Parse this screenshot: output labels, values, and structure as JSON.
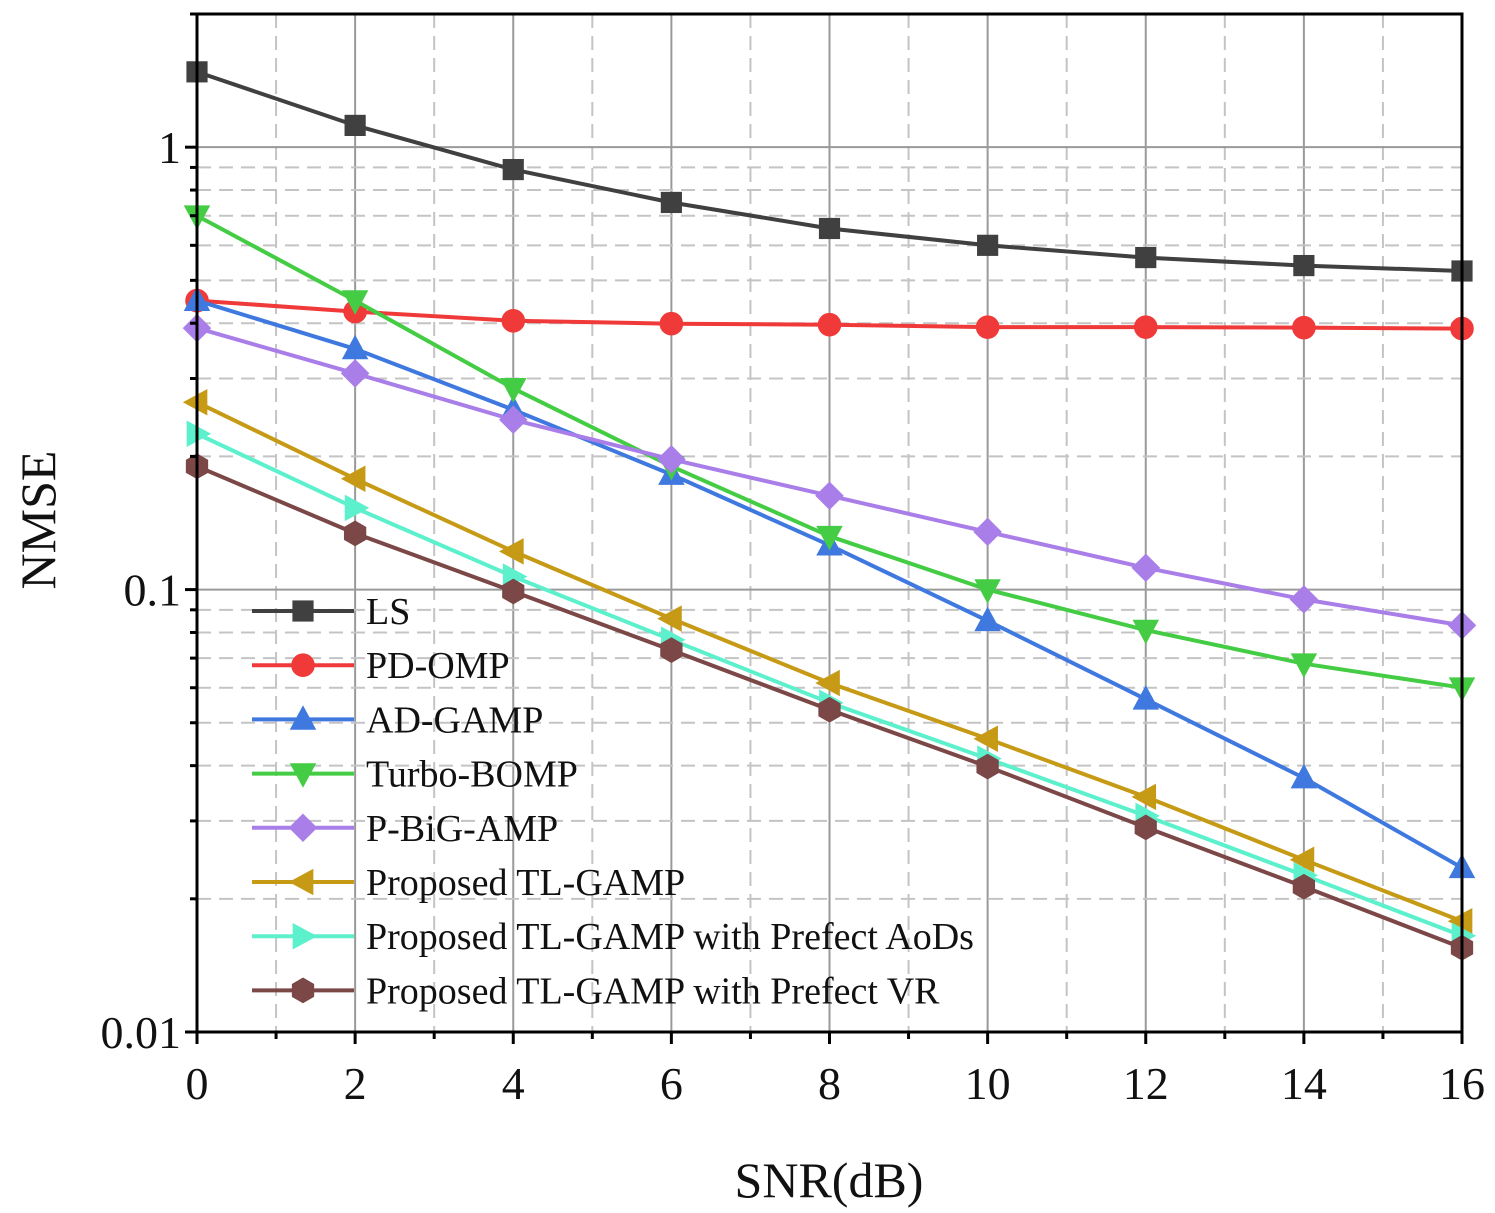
{
  "chart_data": {
    "type": "line",
    "title": "",
    "xlabel": "SNR(dB)",
    "ylabel": "NMSE",
    "yscale": "log",
    "xlim": [
      0,
      16
    ],
    "ylim": [
      0.01,
      2
    ],
    "grid": true,
    "legend_position": "lower-left",
    "x": [
      0,
      2,
      4,
      6,
      8,
      10,
      12,
      14,
      16
    ],
    "x_ticks": [
      {
        "value": 0,
        "label": "0"
      },
      {
        "value": 2,
        "label": "2"
      },
      {
        "value": 4,
        "label": "4"
      },
      {
        "value": 6,
        "label": "6"
      },
      {
        "value": 8,
        "label": "8"
      },
      {
        "value": 10,
        "label": "10"
      },
      {
        "value": 12,
        "label": "12"
      },
      {
        "value": 14,
        "label": "14"
      },
      {
        "value": 16,
        "label": "16"
      }
    ],
    "y_ticks": [
      {
        "value": 1,
        "label": "1"
      },
      {
        "value": 0.1,
        "label": "0.1"
      },
      {
        "value": 0.01,
        "label": "0.01"
      }
    ],
    "series": [
      {
        "name": "LS",
        "color": "#404040",
        "marker": "square",
        "values": [
          1.48,
          1.12,
          0.89,
          0.75,
          0.655,
          0.6,
          0.563,
          0.54,
          0.525
        ]
      },
      {
        "name": "PD-OMP",
        "color": "#f03a3a",
        "marker": "circle",
        "values": [
          0.45,
          0.425,
          0.405,
          0.399,
          0.397,
          0.392,
          0.392,
          0.391,
          0.389
        ]
      },
      {
        "name": "AD-GAMP",
        "color": "#3f79e0",
        "marker": "triangle-up",
        "values": [
          0.45,
          0.35,
          0.255,
          0.182,
          0.126,
          0.085,
          0.0565,
          0.0375,
          0.0235
        ]
      },
      {
        "name": "Turbo-BOMP",
        "color": "#44cc44",
        "marker": "triangle-down",
        "values": [
          0.7,
          0.45,
          0.285,
          0.19,
          0.132,
          0.1,
          0.081,
          0.068,
          0.06
        ]
      },
      {
        "name": "P-BiG-AMP",
        "color": "#a97ee8",
        "marker": "diamond",
        "values": [
          0.39,
          0.308,
          0.242,
          0.197,
          0.163,
          0.135,
          0.112,
          0.095,
          0.083
        ]
      },
      {
        "name": "Proposed TL-GAMP",
        "color": "#c69a15",
        "marker": "triangle-left",
        "values": [
          0.265,
          0.178,
          0.122,
          0.086,
          0.0615,
          0.046,
          0.034,
          0.0245,
          0.0178
        ]
      },
      {
        "name": "Proposed TL-GAMP with Prefect AoDs",
        "color": "#5cf0cc",
        "marker": "triangle-right",
        "values": [
          0.225,
          0.153,
          0.107,
          0.077,
          0.0555,
          0.0415,
          0.0308,
          0.0226,
          0.0165
        ]
      },
      {
        "name": "Proposed TL-GAMP with Prefect VR",
        "color": "#7b4747",
        "marker": "hexagon",
        "values": [
          0.19,
          0.134,
          0.099,
          0.073,
          0.0535,
          0.0398,
          0.029,
          0.0213,
          0.0155
        ]
      }
    ]
  }
}
